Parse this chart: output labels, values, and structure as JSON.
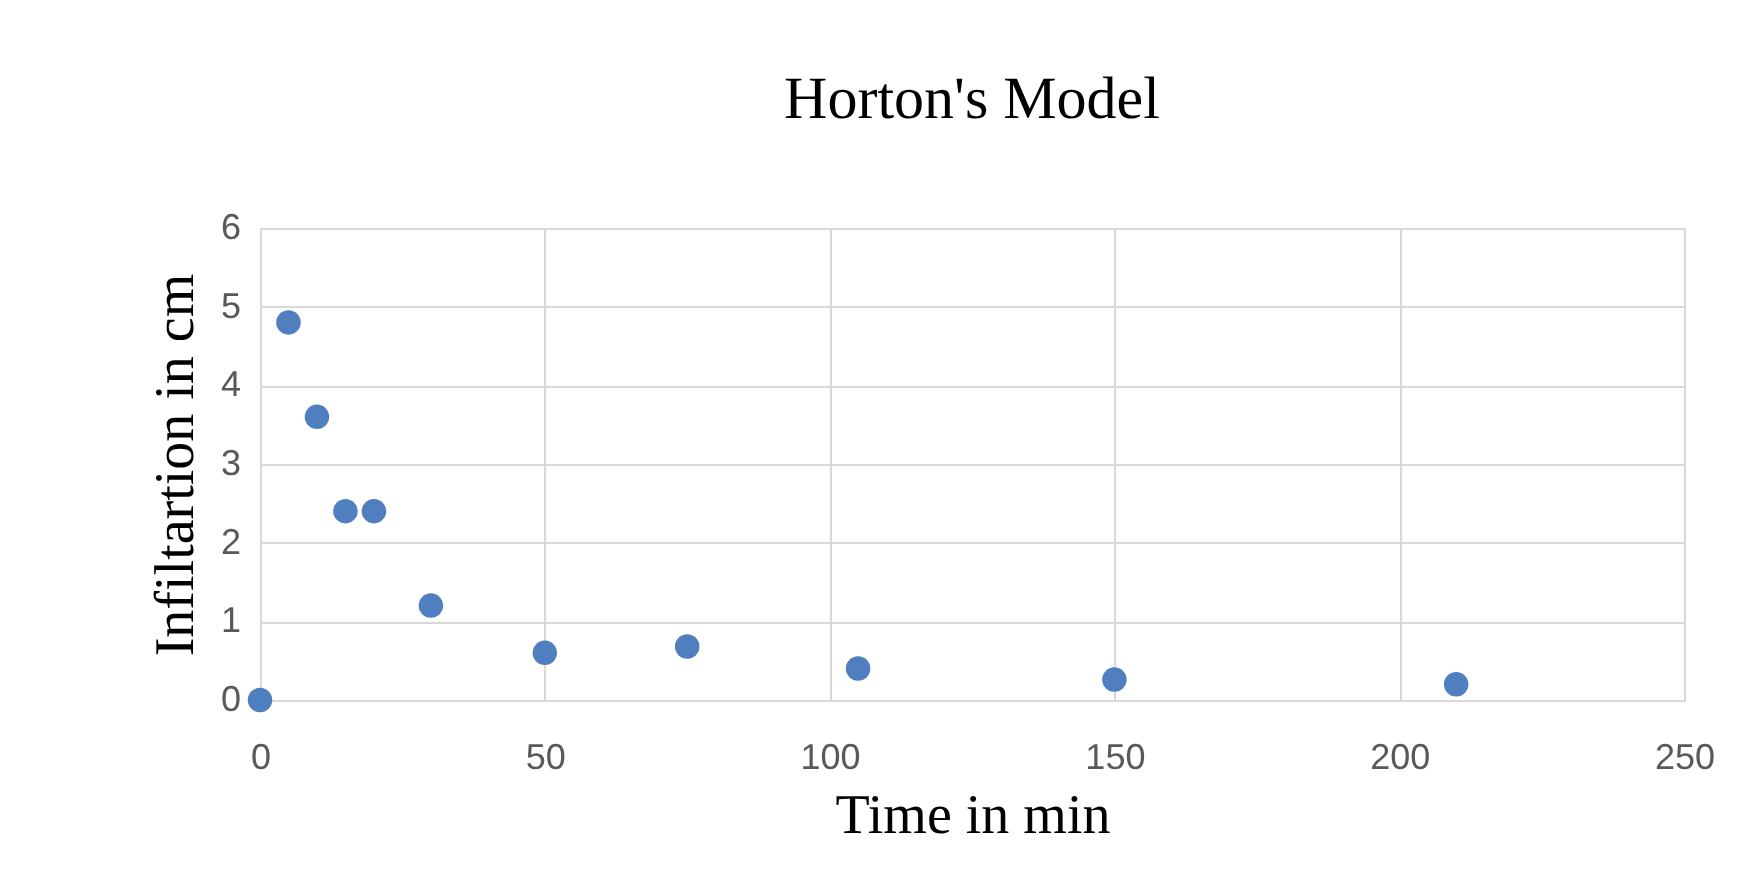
{
  "chart_data": {
    "type": "scatter",
    "title": "Horton's Model",
    "xlabel": "Time in min",
    "ylabel": "Infiltartion in cm",
    "x": [
      0,
      5,
      10,
      15,
      20,
      30,
      50,
      75,
      105,
      150,
      210
    ],
    "series": [
      {
        "color": "#4f7fbf",
        "values": [
          0,
          4.8,
          3.6,
          2.4,
          2.4,
          1.2,
          0.6,
          0.68,
          0.4,
          0.26,
          0.2
        ]
      }
    ],
    "xlim": [
      0,
      250
    ],
    "xticks": [
      0,
      50,
      100,
      150,
      200,
      250
    ],
    "ylim": [
      0,
      6
    ],
    "yticks": [
      0,
      1,
      2,
      3,
      4,
      5,
      6
    ],
    "grid": true,
    "marker": "circle",
    "legend": false
  }
}
